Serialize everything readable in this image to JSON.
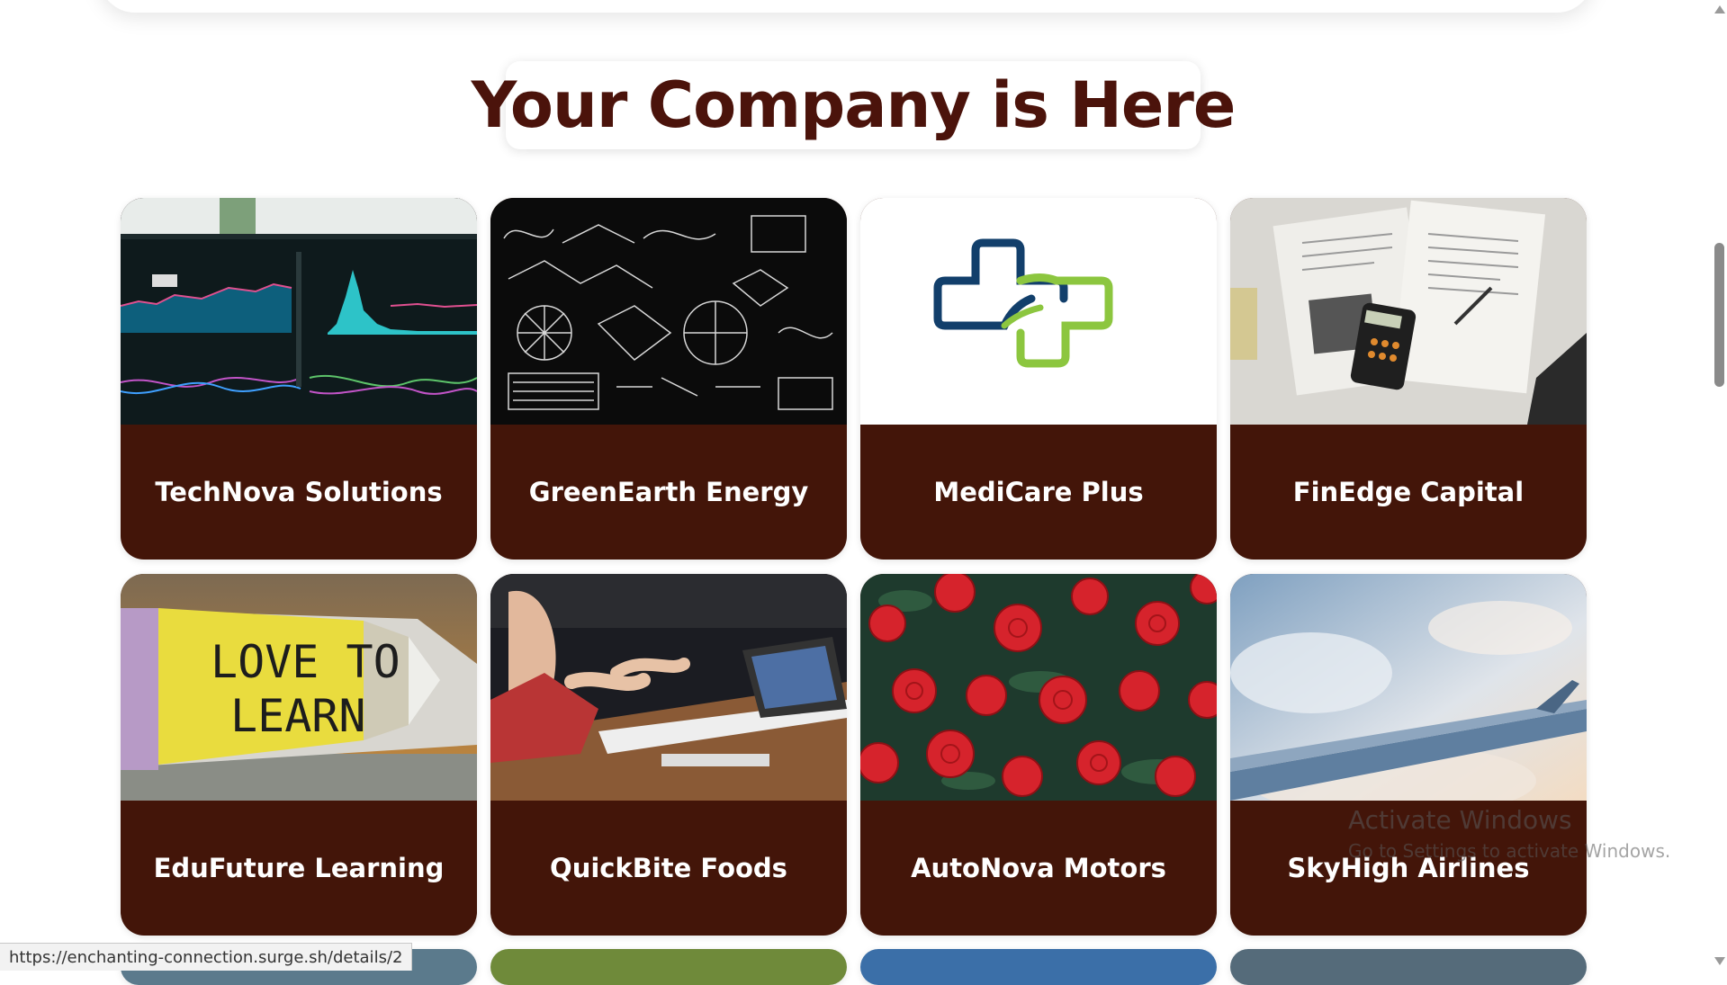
{
  "heading": "Your Company is Here",
  "companies": [
    {
      "name": "TechNova Solutions",
      "image_icon": "dashboard-chart-image"
    },
    {
      "name": "GreenEarth Energy",
      "image_icon": "chalkboard-formulas-image"
    },
    {
      "name": "MediCare Plus",
      "image_icon": "medical-cross-logo"
    },
    {
      "name": "FinEdge Capital",
      "image_icon": "finance-documents-image"
    },
    {
      "name": "EduFuture Learning",
      "image_icon": "love-to-learn-pencil-image"
    },
    {
      "name": "QuickBite Foods",
      "image_icon": "meeting-laptop-image"
    },
    {
      "name": "AutoNova Motors",
      "image_icon": "red-roses-image"
    },
    {
      "name": "SkyHigh Airlines",
      "image_icon": "airplane-wing-sky-image"
    }
  ],
  "pencil_sign": {
    "line1": "LOVE TO",
    "line2": "LEARN"
  },
  "status_url": "https://enchanting-connection.surge.sh/details/2",
  "watermark": {
    "line1": "Activate Windows",
    "line2": "Go to Settings to activate Windows."
  },
  "colors": {
    "heading": "#4b130b",
    "card_footer": "#431509",
    "card_text": "#ffffff"
  }
}
